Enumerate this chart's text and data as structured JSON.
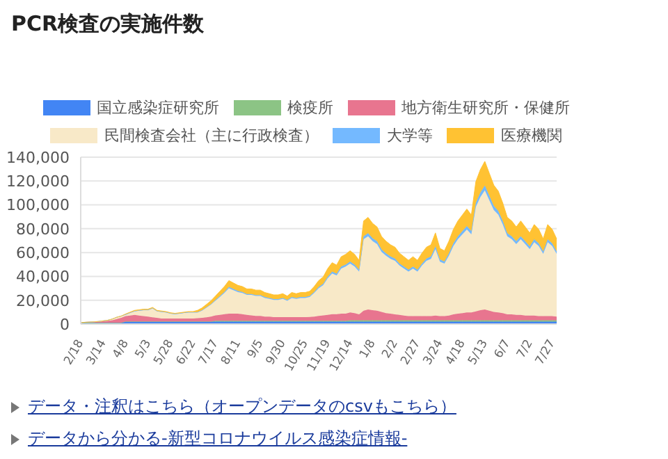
{
  "chart_data": {
    "type": "area",
    "title": "PCR検査の実施件数",
    "stacked": true,
    "categories": [
      "2/18",
      null,
      null,
      null,
      null,
      "3/14",
      null,
      null,
      null,
      null,
      "4/8",
      null,
      null,
      null,
      null,
      "5/3",
      null,
      null,
      null,
      null,
      "5/28",
      null,
      null,
      null,
      null,
      "6/22",
      null,
      null,
      null,
      null,
      "7/17",
      null,
      null,
      null,
      null,
      "8/11",
      null,
      null,
      null,
      null,
      "9/5",
      null,
      null,
      null,
      null,
      "9/30",
      null,
      null,
      null,
      null,
      "10/25",
      null,
      null,
      null,
      null,
      "11/19",
      null,
      null,
      null,
      null,
      "12/14",
      null,
      null,
      null,
      null,
      "1/8",
      null,
      null,
      null,
      null,
      "2/2",
      null,
      null,
      null,
      null,
      "2/27",
      null,
      null,
      null,
      null,
      "3/24",
      null,
      null,
      null,
      null,
      "4/18",
      null,
      null,
      null,
      null,
      "5/13",
      null,
      null,
      null,
      null,
      "6/7",
      null,
      null,
      null,
      null,
      "7/2",
      null,
      null,
      null,
      null,
      "7/27",
      null
    ],
    "series": [
      {
        "name": "国立感染症研究所",
        "color": "#4285f4",
        "values": [
          1000,
          1000,
          1000,
          1000,
          1000,
          1000,
          1000,
          1000,
          1000,
          1000,
          2000,
          2000,
          2000,
          2000,
          2000,
          2000,
          2000,
          2000,
          2000,
          2000,
          2000,
          2000,
          2000,
          2000,
          2000,
          2000,
          2000,
          2000,
          2000,
          2000,
          2000,
          2000,
          2000,
          2000,
          2000,
          2000,
          2000,
          2000,
          2000,
          2000,
          2000,
          2000,
          2000,
          2000,
          2000,
          2000,
          2000,
          2000,
          2000,
          2000,
          2000,
          2000,
          2000,
          2000,
          2000,
          2000,
          2000,
          2000,
          2000,
          2000,
          2000,
          2000,
          2000,
          2000,
          2000,
          2000,
          2000,
          2000,
          2000,
          2000,
          2000,
          2000,
          2000,
          2000,
          2000,
          2000,
          2000,
          2000,
          2000,
          2000,
          2000,
          2000,
          2000,
          2000,
          2000,
          2000,
          2000,
          2000,
          2000,
          2000,
          2000,
          2000,
          2000,
          2000,
          2000,
          2000,
          2000,
          2000,
          2000,
          2000,
          2000,
          2000,
          2000,
          2000,
          2000,
          2000,
          2000
        ]
      },
      {
        "name": "検疫所",
        "color": "#8cc485",
        "values": [
          100,
          200,
          200,
          200,
          200,
          200,
          200,
          200,
          200,
          200,
          200,
          200,
          200,
          200,
          200,
          200,
          200,
          200,
          200,
          200,
          200,
          200,
          200,
          200,
          200,
          200,
          200,
          200,
          200,
          200,
          800,
          800,
          800,
          800,
          800,
          800,
          800,
          800,
          800,
          800,
          800,
          800,
          800,
          800,
          800,
          800,
          800,
          800,
          800,
          800,
          800,
          800,
          800,
          800,
          800,
          800,
          800,
          800,
          800,
          800,
          1200,
          1200,
          1200,
          1200,
          1200,
          1200,
          1200,
          1200,
          1200,
          1200,
          1200,
          1200,
          1200,
          1200,
          1200,
          1200,
          1200,
          1200,
          1200,
          1200,
          1200,
          1200,
          1200,
          1200,
          1200,
          1200,
          1200,
          1200,
          1200,
          1200,
          1200,
          1200,
          1200,
          1200,
          1200,
          1200,
          1200,
          1200,
          1200,
          1200,
          1200,
          1200,
          1200,
          1200,
          1200,
          1200,
          1200
        ]
      },
      {
        "name": "地方衛生研究所・保健所",
        "color": "#e8758f",
        "values": [
          200,
          300,
          500,
          600,
          900,
          1200,
          1500,
          2000,
          3000,
          4000,
          4500,
          5000,
          5500,
          5000,
          4500,
          4000,
          3500,
          3000,
          2500,
          2500,
          2500,
          2500,
          2500,
          2500,
          2500,
          2500,
          2800,
          3000,
          3500,
          4000,
          4500,
          5000,
          5500,
          6000,
          6000,
          6000,
          5500,
          5000,
          4500,
          4000,
          4000,
          3500,
          3500,
          3000,
          3000,
          3000,
          3000,
          3000,
          3000,
          3000,
          3000,
          3200,
          3500,
          4000,
          4500,
          5000,
          5500,
          5500,
          6000,
          6000,
          6500,
          6000,
          5000,
          8000,
          9000,
          8500,
          8000,
          7000,
          6000,
          5500,
          5000,
          4500,
          4000,
          3500,
          3500,
          3500,
          3500,
          3500,
          3500,
          4000,
          3500,
          3500,
          4000,
          5000,
          5500,
          6000,
          6500,
          6500,
          7500,
          8500,
          9000,
          8000,
          7000,
          6500,
          6000,
          5000,
          5000,
          4500,
          4500,
          4000,
          4000,
          4000,
          3500,
          3500,
          3500,
          3500,
          3000
        ]
      },
      {
        "name": "民間検査会社（主に行政検査）",
        "color": "#f8e9c8",
        "values": [
          0,
          0,
          0,
          100,
          100,
          300,
          500,
          1000,
          1500,
          1500,
          1100,
          2100,
          3000,
          4000,
          4900,
          5400,
          7400,
          5500,
          5500,
          5000,
          4100,
          3600,
          4100,
          4600,
          5000,
          5000,
          4700,
          6100,
          8000,
          10100,
          12200,
          15000,
          17800,
          21300,
          19700,
          18100,
          17800,
          16700,
          17200,
          16800,
          16800,
          15600,
          14900,
          14500,
          14500,
          15400,
          13700,
          16100,
          15400,
          16100,
          16100,
          16800,
          19800,
          23300,
          25400,
          30500,
          34200,
          32600,
          37700,
          39400,
          41000,
          39000,
          35900,
          59900,
          61500,
          57800,
          55900,
          50300,
          48100,
          46000,
          44900,
          41400,
          39300,
          37400,
          39800,
          37400,
          42400,
          46400,
          48000,
          55700,
          45600,
          44000,
          50100,
          57300,
          62400,
          66100,
          69600,
          65600,
          87600,
          94800,
          99900,
          92700,
          85500,
          82000,
          74300,
          65500,
          62900,
          59400,
          63400,
          59900,
          55700,
          61500,
          58800,
          52200,
          62000,
          58800,
          52700
        ]
      },
      {
        "name": "大学等",
        "color": "#74b9ff",
        "values": [
          0,
          0,
          0,
          0,
          0,
          0,
          0,
          0,
          0,
          0,
          300,
          300,
          300,
          300,
          300,
          300,
          300,
          300,
          300,
          300,
          300,
          300,
          300,
          300,
          300,
          300,
          300,
          400,
          500,
          500,
          700,
          800,
          900,
          1100,
          1000,
          900,
          900,
          800,
          800,
          800,
          800,
          800,
          700,
          700,
          700,
          700,
          700,
          800,
          700,
          800,
          800,
          800,
          900,
          1100,
          1100,
          1400,
          1500,
          1400,
          1700,
          1700,
          1800,
          1700,
          1600,
          2600,
          2600,
          2500,
          2400,
          2200,
          2000,
          2000,
          1900,
          1700,
          1700,
          1600,
          1700,
          1600,
          1700,
          1900,
          2000,
          2300,
          1900,
          1800,
          2000,
          2300,
          2600,
          2700,
          2900,
          2700,
          3500,
          3800,
          4100,
          3800,
          3500,
          3300,
          3000,
          2600,
          2600,
          2400,
          2600,
          2400,
          2300,
          2500,
          2300,
          2100,
          2500,
          2300,
          2100
        ]
      },
      {
        "name": "医療機関",
        "color": "#ffc233",
        "values": [
          0,
          0,
          0,
          0,
          0,
          0,
          0,
          0,
          0,
          0,
          400,
          400,
          500,
          500,
          600,
          600,
          600,
          500,
          500,
          500,
          400,
          400,
          400,
          400,
          500,
          500,
          1500,
          1800,
          2300,
          2700,
          3300,
          3900,
          4500,
          5300,
          5000,
          4700,
          4500,
          4200,
          4200,
          4100,
          4100,
          3800,
          3600,
          3500,
          3500,
          3600,
          3300,
          3800,
          3600,
          3800,
          3800,
          3900,
          4500,
          5300,
          5700,
          6800,
          7500,
          7200,
          8300,
          8600,
          9000,
          8600,
          7800,
          12800,
          13200,
          12500,
          12000,
          10800,
          10200,
          9800,
          9500,
          8700,
          8300,
          7800,
          8300,
          7800,
          8700,
          9500,
          9800,
          11300,
          9300,
          9000,
          10200,
          11700,
          12800,
          13500,
          14300,
          13500,
          17700,
          19200,
          20300,
          18800,
          17300,
          16500,
          15000,
          13200,
          12800,
          12000,
          12800,
          12000,
          11300,
          12300,
          11700,
          10500,
          12300,
          11700,
          10500
        ]
      }
    ],
    "ylim": [
      0,
      140000
    ],
    "yticks": [
      0,
      {
        "value": 20000,
        "label": "20,000"
      },
      {
        "value": 40000,
        "label": "40,000"
      },
      {
        "value": 60000,
        "label": "60,000"
      },
      {
        "value": 80000,
        "label": "80,000"
      },
      {
        "value": 100000,
        "label": "100,000"
      },
      {
        "value": 120000,
        "label": "120,000"
      },
      {
        "value": 140000,
        "label": "140,000"
      }
    ],
    "grid": "y",
    "legend": "top",
    "annotations": [
      "データ・注釈はこちら（オープンデータのcsvもこちら）",
      "データから分かる-新型コロナウイルス感染症情報-"
    ]
  }
}
